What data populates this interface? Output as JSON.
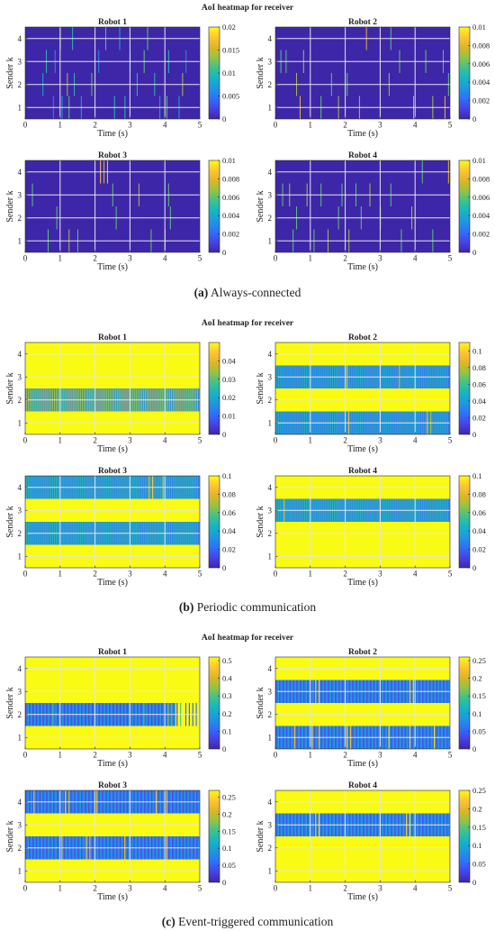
{
  "sections": [
    {
      "figure_title": "AoI heatmap for receiver",
      "caption_letter": "(a)",
      "caption_text": "Always-connected",
      "mode": "sparse"
    },
    {
      "figure_title": "AoI heatmap for receiver",
      "caption_letter": "(b)",
      "caption_text": "Periodic communication",
      "mode": "periodic"
    },
    {
      "figure_title": "AoI heatmap for receiver",
      "caption_letter": "(c)",
      "caption_text": "Event-triggered communication",
      "mode": "event"
    }
  ],
  "colors": {
    "colormap": [
      "#3e26a8",
      "#4742e9",
      "#2f70fa",
      "#1e97e1",
      "#14b5c5",
      "#3cc28f",
      "#93c345",
      "#dbb626",
      "#fec435",
      "#f9fb14"
    ],
    "grid": "#e6e6e6",
    "axis": "#262626"
  },
  "chart_data": [
    {
      "type": "heatmap",
      "section": 0,
      "title": "Robot 1",
      "xlabel": "Time (s)",
      "ylabel": "Sender k",
      "xlim": [
        0,
        5
      ],
      "ylim": [
        0.5,
        4.5
      ],
      "xticks": [
        0,
        1,
        2,
        3,
        4,
        5
      ],
      "yticks": [
        1,
        2,
        3,
        4
      ],
      "grid": true,
      "clim": [
        0,
        0.02
      ],
      "cbar_ticks": [
        0,
        0.005,
        0.01,
        0.015,
        0.02
      ],
      "cbar_tick_labels": [
        "0",
        "0.005",
        "0.01",
        "0.015",
        "0.02"
      ],
      "base_value": 0,
      "cells": [
        [
          0.5,
          2,
          0.008
        ],
        [
          0.6,
          3,
          0.01
        ],
        [
          0.8,
          1,
          0.006
        ],
        [
          0.85,
          3,
          0.006
        ],
        [
          1.0,
          4,
          0.012
        ],
        [
          1.05,
          1,
          0.008
        ],
        [
          1.2,
          2,
          0.014
        ],
        [
          1.25,
          1,
          0.012
        ],
        [
          1.35,
          4,
          0.01
        ],
        [
          1.4,
          2,
          0.01
        ],
        [
          1.6,
          1,
          0.008
        ],
        [
          1.9,
          2,
          0.012
        ],
        [
          2.1,
          3,
          0.006
        ],
        [
          2.3,
          4,
          0.012
        ],
        [
          2.55,
          1,
          0.01
        ],
        [
          2.7,
          4,
          0.008
        ],
        [
          2.85,
          1,
          0.01
        ],
        [
          3.0,
          3,
          0.006
        ],
        [
          3.2,
          2,
          0.01
        ],
        [
          3.4,
          3,
          0.012
        ],
        [
          3.5,
          4,
          0.012
        ],
        [
          3.7,
          2,
          0.01
        ],
        [
          3.85,
          1,
          0.008
        ],
        [
          4.05,
          1,
          0.012
        ],
        [
          4.1,
          3,
          0.01
        ],
        [
          4.4,
          1,
          0.008
        ],
        [
          4.5,
          2,
          0.014
        ],
        [
          4.6,
          3,
          0.006
        ]
      ]
    },
    {
      "type": "heatmap",
      "section": 0,
      "title": "Robot 2",
      "xlabel": "Time (s)",
      "ylabel": "Sender k",
      "xlim": [
        0,
        5
      ],
      "ylim": [
        0.5,
        4.5
      ],
      "xticks": [
        0,
        1,
        2,
        3,
        4,
        5
      ],
      "yticks": [
        1,
        2,
        3,
        4
      ],
      "grid": true,
      "clim": [
        0,
        0.01
      ],
      "cbar_ticks": [
        0,
        0.002,
        0.004,
        0.006,
        0.008,
        0.01
      ],
      "cbar_tick_labels": [
        "0",
        "0.002",
        "0.004",
        "0.006",
        "0.008",
        "0.01"
      ],
      "base_value": 0,
      "cells": [
        [
          0.15,
          3,
          0.006
        ],
        [
          0.3,
          3,
          0.006
        ],
        [
          0.6,
          2,
          0.007
        ],
        [
          0.7,
          1,
          0.008
        ],
        [
          0.8,
          3,
          0.007
        ],
        [
          1.3,
          1,
          0.006
        ],
        [
          1.6,
          2,
          0.006
        ],
        [
          1.8,
          1,
          0.007
        ],
        [
          2.05,
          2,
          0.006
        ],
        [
          2.4,
          1,
          0.007
        ],
        [
          2.6,
          4,
          0.008
        ],
        [
          3.25,
          2,
          0.007
        ],
        [
          3.3,
          4,
          0.006
        ],
        [
          3.55,
          3,
          0.006
        ],
        [
          3.95,
          1,
          0.007
        ],
        [
          4.3,
          3,
          0.006
        ],
        [
          4.5,
          1,
          0.007
        ],
        [
          4.8,
          3,
          0.006
        ],
        [
          4.85,
          1,
          0.008
        ],
        [
          4.95,
          2,
          0.006
        ]
      ]
    },
    {
      "type": "heatmap",
      "section": 0,
      "title": "Robot 3",
      "xlabel": "Time (s)",
      "ylabel": "Sender k",
      "xlim": [
        0,
        5
      ],
      "ylim": [
        0.5,
        4.5
      ],
      "xticks": [
        0,
        1,
        2,
        3,
        4,
        5
      ],
      "yticks": [
        1,
        2,
        3,
        4
      ],
      "grid": true,
      "clim": [
        0,
        0.01
      ],
      "cbar_ticks": [
        0,
        0.002,
        0.004,
        0.006,
        0.008,
        0.01
      ],
      "cbar_tick_labels": [
        "0",
        "0.002",
        "0.004",
        "0.006",
        "0.008",
        "0.01"
      ],
      "base_value": 0,
      "cells": [
        [
          0.2,
          3,
          0.006
        ],
        [
          0.65,
          1,
          0.006
        ],
        [
          0.9,
          2,
          0.006
        ],
        [
          1.25,
          1,
          0.007
        ],
        [
          1.5,
          1,
          0.006
        ],
        [
          2.15,
          4,
          0.009
        ],
        [
          2.25,
          4,
          0.008
        ],
        [
          2.35,
          4,
          0.009
        ],
        [
          2.5,
          3,
          0.006
        ],
        [
          2.6,
          2,
          0.006
        ],
        [
          3.25,
          3,
          0.007
        ],
        [
          3.6,
          1,
          0.006
        ],
        [
          4.0,
          1,
          0.007
        ],
        [
          4.1,
          3,
          0.006
        ],
        [
          4.15,
          2,
          0.006
        ]
      ]
    },
    {
      "type": "heatmap",
      "section": 0,
      "title": "Robot 4",
      "xlabel": "Time (s)",
      "ylabel": "Sender k",
      "xlim": [
        0,
        5
      ],
      "ylim": [
        0.5,
        4.5
      ],
      "xticks": [
        0,
        1,
        2,
        3,
        4,
        5
      ],
      "yticks": [
        1,
        2,
        3,
        4
      ],
      "grid": true,
      "clim": [
        0,
        0.01
      ],
      "cbar_ticks": [
        0,
        0.002,
        0.004,
        0.006,
        0.008,
        0.01
      ],
      "cbar_tick_labels": [
        "0",
        "0.002",
        "0.004",
        "0.006",
        "0.008",
        "0.01"
      ],
      "base_value": 0,
      "cells": [
        [
          0.2,
          3,
          0.006
        ],
        [
          0.4,
          3,
          0.007
        ],
        [
          0.5,
          1,
          0.006
        ],
        [
          0.6,
          2,
          0.006
        ],
        [
          0.9,
          3,
          0.007
        ],
        [
          1.1,
          1,
          0.006
        ],
        [
          1.3,
          3,
          0.006
        ],
        [
          1.5,
          1,
          0.007
        ],
        [
          1.8,
          2,
          0.006
        ],
        [
          1.9,
          3,
          0.006
        ],
        [
          2.1,
          1,
          0.007
        ],
        [
          2.3,
          3,
          0.006
        ],
        [
          2.45,
          2,
          0.006
        ],
        [
          2.7,
          3,
          0.007
        ],
        [
          3.0,
          2,
          0.006
        ],
        [
          3.3,
          3,
          0.006
        ],
        [
          3.6,
          1,
          0.006
        ],
        [
          3.9,
          2,
          0.007
        ],
        [
          4.2,
          4,
          0.006
        ],
        [
          4.5,
          1,
          0.006
        ],
        [
          4.95,
          4,
          0.008
        ]
      ]
    },
    {
      "type": "heatmap",
      "section": 1,
      "title": "Robot 1",
      "xlabel": "Time (s)",
      "ylabel": "Sender k",
      "xlim": [
        0,
        5
      ],
      "ylim": [
        0.5,
        4.5
      ],
      "xticks": [
        0,
        1,
        2,
        3,
        4,
        5
      ],
      "yticks": [
        1,
        2,
        3,
        4
      ],
      "grid": true,
      "clim": [
        0,
        0.05
      ],
      "cbar_ticks": [
        0,
        0.01,
        0.02,
        0.03,
        0.04
      ],
      "cbar_tick_labels": [
        "0",
        "0.01",
        "0.02",
        "0.03",
        "0.04"
      ],
      "base_value": 0.05,
      "bands": [
        {
          "row": 2,
          "period": 0.05,
          "low": 0.01,
          "high": 0.04
        }
      ],
      "cells": []
    },
    {
      "type": "heatmap",
      "section": 1,
      "title": "Robot 2",
      "xlabel": "Time (s)",
      "ylabel": "Sender k",
      "xlim": [
        0,
        5
      ],
      "ylim": [
        0.5,
        4.5
      ],
      "xticks": [
        0,
        1,
        2,
        3,
        4,
        5
      ],
      "yticks": [
        1,
        2,
        3,
        4
      ],
      "grid": true,
      "clim": [
        0,
        0.11
      ],
      "cbar_ticks": [
        0,
        0.02,
        0.04,
        0.06,
        0.08,
        0.1
      ],
      "cbar_tick_labels": [
        "0",
        "0.02",
        "0.04",
        "0.06",
        "0.08",
        "0.1"
      ],
      "base_value": 0.11,
      "bands": [
        {
          "row": 3,
          "period": 0.05,
          "low": 0.02,
          "high": 0.05
        },
        {
          "row": 1,
          "period": 0.05,
          "low": 0.02,
          "high": 0.05
        }
      ],
      "cells": [
        [
          2.05,
          3,
          0.09
        ],
        [
          2.1,
          1,
          0.09
        ],
        [
          3.55,
          3,
          0.08
        ],
        [
          4.35,
          1,
          0.09
        ],
        [
          4.45,
          1,
          0.08
        ]
      ]
    },
    {
      "type": "heatmap",
      "section": 1,
      "title": "Robot 3",
      "xlabel": "Time (s)",
      "ylabel": "Sender k",
      "xlim": [
        0,
        5
      ],
      "ylim": [
        0.5,
        4.5
      ],
      "xticks": [
        0,
        1,
        2,
        3,
        4,
        5
      ],
      "yticks": [
        1,
        2,
        3,
        4
      ],
      "grid": true,
      "clim": [
        0,
        0.1
      ],
      "cbar_ticks": [
        0,
        0.02,
        0.04,
        0.06,
        0.08,
        0.1
      ],
      "cbar_tick_labels": [
        "0",
        "0.02",
        "0.04",
        "0.06",
        "0.08",
        "0.1"
      ],
      "base_value": 0.1,
      "bands": [
        {
          "row": 4,
          "period": 0.05,
          "low": 0.02,
          "high": 0.05
        },
        {
          "row": 2,
          "period": 0.05,
          "low": 0.02,
          "high": 0.05
        }
      ],
      "cells": [
        [
          3.55,
          4,
          0.08
        ],
        [
          3.65,
          4,
          0.09
        ],
        [
          3.95,
          4,
          0.08
        ]
      ]
    },
    {
      "type": "heatmap",
      "section": 1,
      "title": "Robot 4",
      "xlabel": "Time (s)",
      "ylabel": "Sender k",
      "xlim": [
        0,
        5
      ],
      "ylim": [
        0.5,
        4.5
      ],
      "xticks": [
        0,
        1,
        2,
        3,
        4,
        5
      ],
      "yticks": [
        1,
        2,
        3,
        4
      ],
      "grid": true,
      "clim": [
        0,
        0.1
      ],
      "cbar_ticks": [
        0,
        0.02,
        0.04,
        0.06,
        0.08,
        0.1
      ],
      "cbar_tick_labels": [
        "0",
        "0.02",
        "0.04",
        "0.06",
        "0.08",
        "0.1"
      ],
      "base_value": 0.1,
      "bands": [
        {
          "row": 3,
          "period": 0.05,
          "low": 0.02,
          "high": 0.05
        }
      ],
      "cells": [
        [
          0.25,
          3,
          0.08
        ]
      ]
    },
    {
      "type": "heatmap",
      "section": 2,
      "title": "Robot 1",
      "xlabel": "Time (s)",
      "ylabel": "Sender k",
      "xlim": [
        0,
        5
      ],
      "ylim": [
        0.5,
        4.5
      ],
      "xticks": [
        0,
        1,
        2,
        3,
        4,
        5
      ],
      "yticks": [
        1,
        2,
        3,
        4
      ],
      "grid": true,
      "clim": [
        0,
        0.52
      ],
      "cbar_ticks": [
        0,
        0.1,
        0.2,
        0.3,
        0.4,
        0.5
      ],
      "cbar_tick_labels": [
        "0",
        "0.1",
        "0.2",
        "0.3",
        "0.4",
        "0.5"
      ],
      "base_value": 0.52,
      "bands": [
        {
          "row": 2,
          "period": 0.1,
          "low": 0.05,
          "high": 0.2,
          "end": 4.3
        }
      ],
      "cells": [
        [
          0.8,
          2,
          0.3
        ],
        [
          3.4,
          2,
          0.28
        ],
        [
          4.1,
          2,
          0.35
        ],
        [
          4.2,
          2,
          0.3
        ],
        [
          4.35,
          2,
          0.05
        ],
        [
          4.45,
          2,
          0.3
        ],
        [
          4.6,
          2,
          0.08
        ],
        [
          4.7,
          2,
          0.08
        ],
        [
          4.8,
          2,
          0.1
        ],
        [
          4.9,
          2,
          0.12
        ]
      ]
    },
    {
      "type": "heatmap",
      "section": 2,
      "title": "Robot 2",
      "xlabel": "Time (s)",
      "ylabel": "Sender k",
      "xlim": [
        0,
        5
      ],
      "ylim": [
        0.5,
        4.5
      ],
      "xticks": [
        0,
        1,
        2,
        3,
        4,
        5
      ],
      "yticks": [
        1,
        2,
        3,
        4
      ],
      "grid": true,
      "clim": [
        0,
        0.26
      ],
      "cbar_ticks": [
        0,
        0.05,
        0.1,
        0.15,
        0.2,
        0.25
      ],
      "cbar_tick_labels": [
        "0",
        "0.05",
        "0.1",
        "0.15",
        "0.2",
        "0.25"
      ],
      "base_value": 0.26,
      "bands": [
        {
          "row": 3,
          "period": 0.1,
          "low": 0.03,
          "high": 0.1
        },
        {
          "row": 1,
          "period": 0.1,
          "low": 0.03,
          "high": 0.1
        }
      ],
      "cells": [
        [
          1.15,
          3,
          0.22
        ],
        [
          1.25,
          3,
          0.24
        ],
        [
          3.85,
          3,
          0.22
        ],
        [
          3.95,
          3,
          0.24
        ],
        [
          0.55,
          1,
          0.22
        ],
        [
          1.05,
          1,
          0.24
        ],
        [
          1.25,
          1,
          0.22
        ],
        [
          2.05,
          1,
          0.24
        ],
        [
          2.15,
          1,
          0.22
        ],
        [
          3.25,
          1,
          0.24
        ],
        [
          3.85,
          1,
          0.22
        ],
        [
          4.55,
          1,
          0.24
        ]
      ]
    },
    {
      "type": "heatmap",
      "section": 2,
      "title": "Robot 3",
      "xlabel": "Time (s)",
      "ylabel": "Sender k",
      "xlim": [
        0,
        5
      ],
      "ylim": [
        0.5,
        4.5
      ],
      "xticks": [
        0,
        1,
        2,
        3,
        4,
        5
      ],
      "yticks": [
        1,
        2,
        3,
        4
      ],
      "grid": true,
      "clim": [
        0,
        0.27
      ],
      "cbar_ticks": [
        0,
        0.05,
        0.1,
        0.15,
        0.2,
        0.25
      ],
      "cbar_tick_labels": [
        "0",
        "0.05",
        "0.1",
        "0.15",
        "0.2",
        "0.25"
      ],
      "base_value": 0.27,
      "bands": [
        {
          "row": 4,
          "period": 0.1,
          "low": 0.03,
          "high": 0.1
        },
        {
          "row": 2,
          "period": 0.1,
          "low": 0.03,
          "high": 0.1
        }
      ],
      "cells": [
        [
          0.25,
          4,
          0.22
        ],
        [
          1.15,
          4,
          0.24
        ],
        [
          1.25,
          4,
          0.2
        ],
        [
          2.05,
          4,
          0.22
        ],
        [
          3.75,
          4,
          0.24
        ],
        [
          4.05,
          4,
          0.22
        ],
        [
          1.05,
          2,
          0.22
        ],
        [
          1.75,
          2,
          0.24
        ],
        [
          1.85,
          2,
          0.2
        ],
        [
          2.85,
          2,
          0.22
        ],
        [
          4.05,
          2,
          0.24
        ]
      ]
    },
    {
      "type": "heatmap",
      "section": 2,
      "title": "Robot 4",
      "xlabel": "Time (s)",
      "ylabel": "Sender k",
      "xlim": [
        0,
        5
      ],
      "ylim": [
        0.5,
        4.5
      ],
      "xticks": [
        0,
        1,
        2,
        3,
        4,
        5
      ],
      "yticks": [
        1,
        2,
        3,
        4
      ],
      "grid": true,
      "clim": [
        0,
        0.25
      ],
      "cbar_ticks": [
        0,
        0.05,
        0.1,
        0.15,
        0.2,
        0.25
      ],
      "cbar_tick_labels": [
        "0",
        "0.05",
        "0.1",
        "0.15",
        "0.2",
        "0.25"
      ],
      "base_value": 0.25,
      "bands": [
        {
          "row": 3,
          "period": 0.1,
          "low": 0.03,
          "high": 0.1
        }
      ],
      "cells": [
        [
          1.15,
          3,
          0.22
        ],
        [
          1.25,
          3,
          0.24
        ],
        [
          3.75,
          3,
          0.22
        ],
        [
          3.85,
          3,
          0.24
        ]
      ]
    }
  ]
}
